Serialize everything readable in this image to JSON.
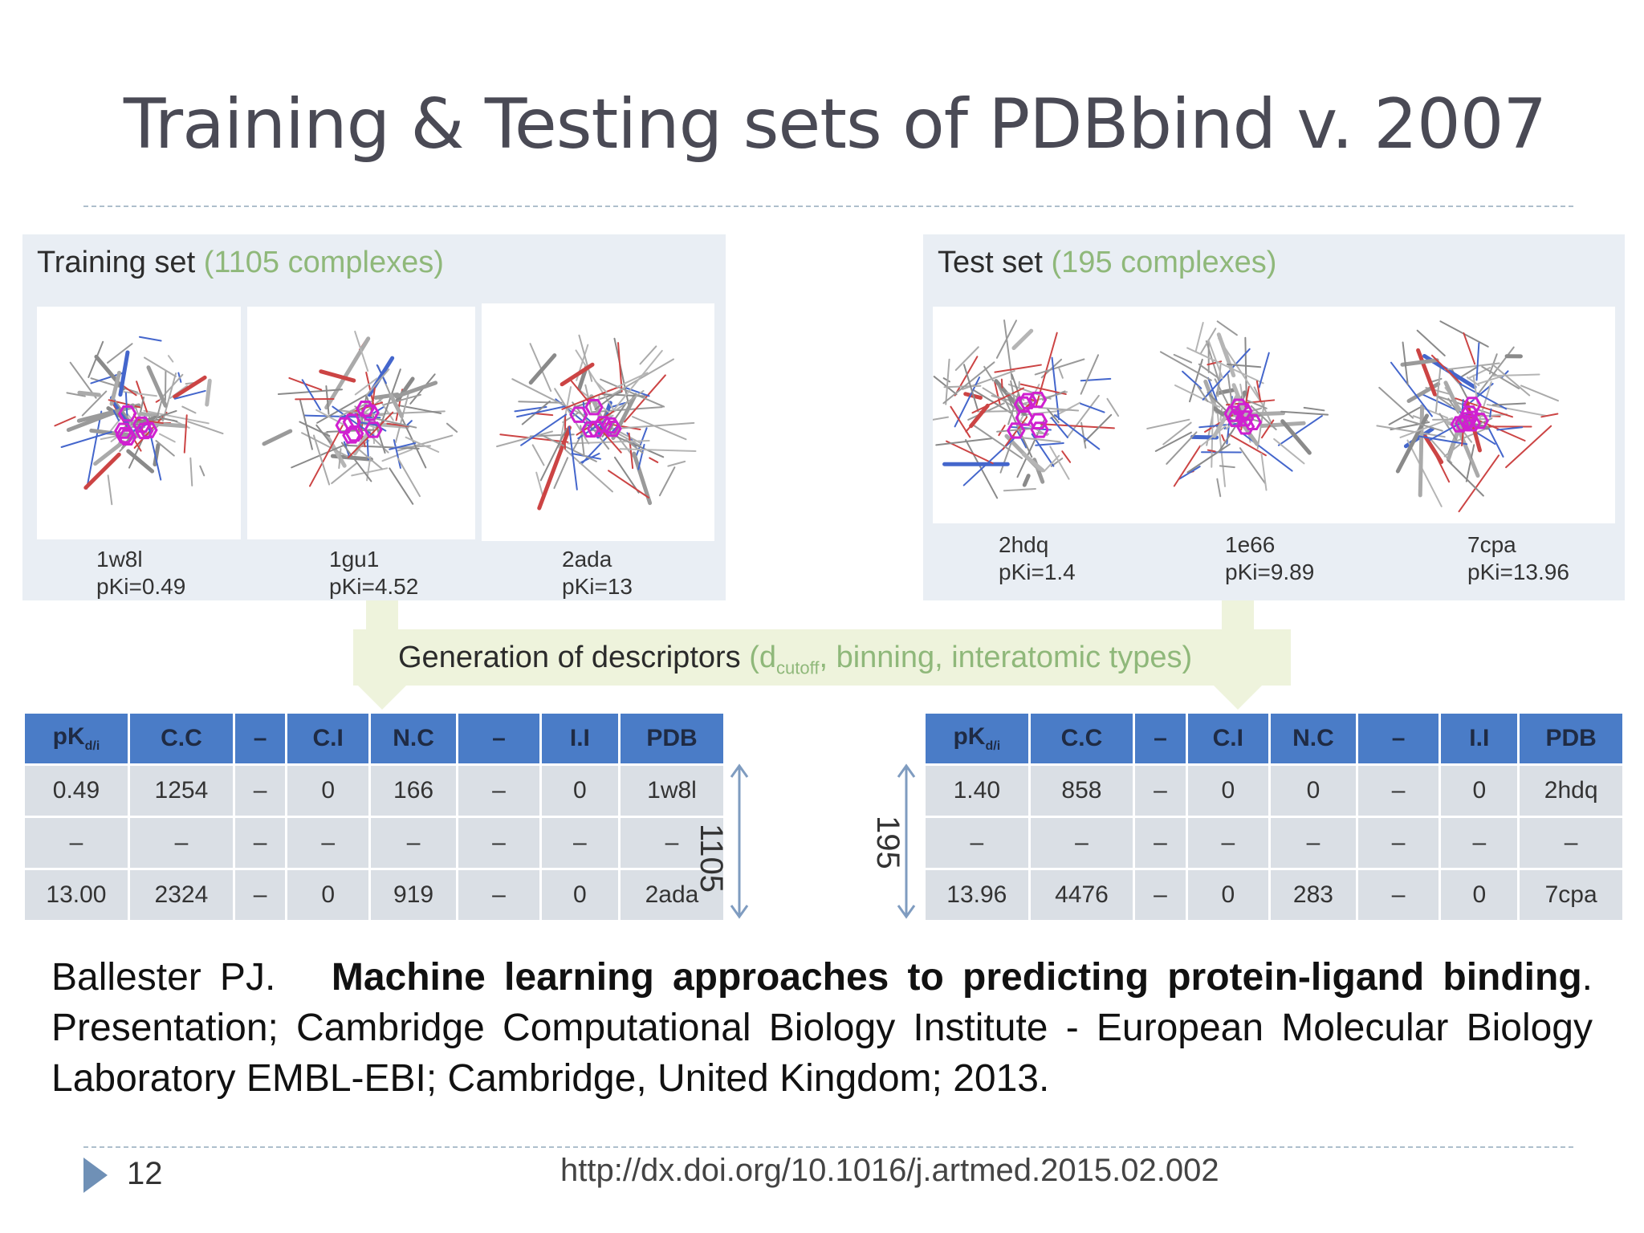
{
  "title": "Training & Testing sets of PDBbind v. 2007",
  "training": {
    "label": "Training set",
    "count": "(1105 complexes)",
    "molecules": [
      {
        "id": "1w8l",
        "pk": "pKi=0.49"
      },
      {
        "id": "1gu1",
        "pk": "pKi=4.52"
      },
      {
        "id": "2ada",
        "pk": "pKi=13"
      }
    ],
    "table_size": "1105"
  },
  "test": {
    "label": "Test set",
    "count": "(195 complexes)",
    "molecules": [
      {
        "id": "2hdq",
        "pk": "pKi=1.4"
      },
      {
        "id": "1e66",
        "pk": "pKi=9.89"
      },
      {
        "id": "7cpa",
        "pk": "pKi=13.96"
      }
    ],
    "table_size": "195"
  },
  "descriptors": {
    "label": "Generation of descriptors",
    "paren_open": "(d",
    "sub": "cutoff",
    "rest": ", binning, interatomic types)"
  },
  "table_headers": [
    "pK",
    "C.C",
    "–",
    "C.I",
    "N.C",
    "–",
    "I.I",
    "PDB"
  ],
  "pk_sub": "d/i",
  "train_rows": [
    [
      "0.49",
      "1254",
      "–",
      "0",
      "166",
      "–",
      "0",
      "1w8l"
    ],
    [
      "–",
      "–",
      "–",
      "–",
      "–",
      "–",
      "–",
      "–"
    ],
    [
      "13.00",
      "2324",
      "–",
      "0",
      "919",
      "–",
      "0",
      "2ada"
    ]
  ],
  "test_rows": [
    [
      "1.40",
      "858",
      "–",
      "0",
      "0",
      "–",
      "0",
      "2hdq"
    ],
    [
      "–",
      "–",
      "–",
      "–",
      "–",
      "–",
      "–",
      "–"
    ],
    [
      "13.96",
      "4476",
      "–",
      "0",
      "283",
      "–",
      "0",
      "7cpa"
    ]
  ],
  "reference": {
    "author": "Ballester PJ.",
    "title": "Machine learning approaches to predicting protein-ligand binding",
    "rest": ". Presentation; Cambridge Computational Biology Institute - European Molecular Biology Laboratory EMBL-EBI; Cambridge, United Kingdom; 2013."
  },
  "footer": {
    "page": "12",
    "doi": "http://dx.doi.org/10.1016/j.artmed.2015.02.002"
  },
  "colors": {
    "header_blue": "#4a7cc7",
    "cell_gray": "#dadfe5",
    "accent_green": "#8fb87a",
    "ligand_magenta": "#d020d0"
  }
}
